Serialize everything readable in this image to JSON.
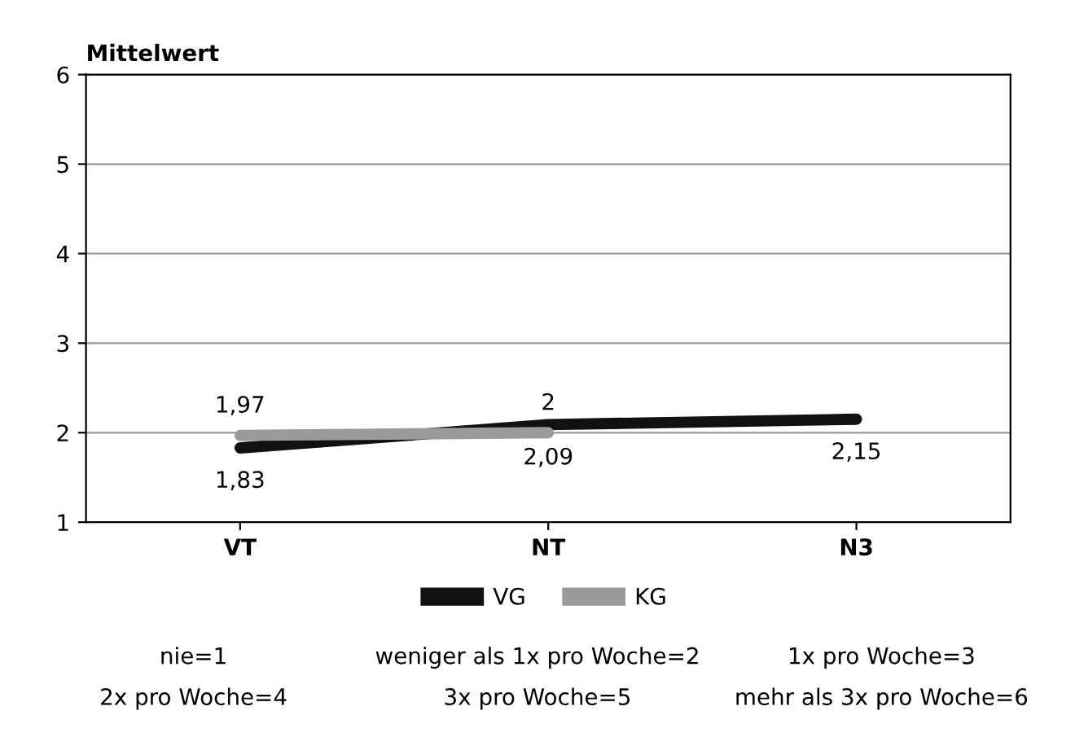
{
  "chart_data": {
    "type": "line",
    "ylabel": "Mittelwert",
    "categories": [
      "VT",
      "NT",
      "N3"
    ],
    "series": [
      {
        "name": "VG",
        "color": "#111111",
        "values": [
          1.83,
          2.09,
          2.15
        ],
        "value_labels": [
          "1,83",
          "2,09",
          "2,15"
        ]
      },
      {
        "name": "KG",
        "color": "#9a9a9a",
        "values": [
          1.97,
          2,
          null
        ],
        "value_labels": [
          "1,97",
          "2",
          null
        ]
      }
    ],
    "ylim": [
      1,
      6
    ],
    "yticks": [
      1,
      2,
      3,
      4,
      5,
      6
    ],
    "grid": "y",
    "legend": "bottom",
    "marker": "none",
    "line_style": "solid",
    "annotations": [
      "nie=1",
      "weniger als 1x pro Woche=2",
      "1x pro Woche=3",
      "2x pro Woche=4",
      "3x pro Woche=5",
      "mehr als 3x pro Woche=6"
    ]
  }
}
